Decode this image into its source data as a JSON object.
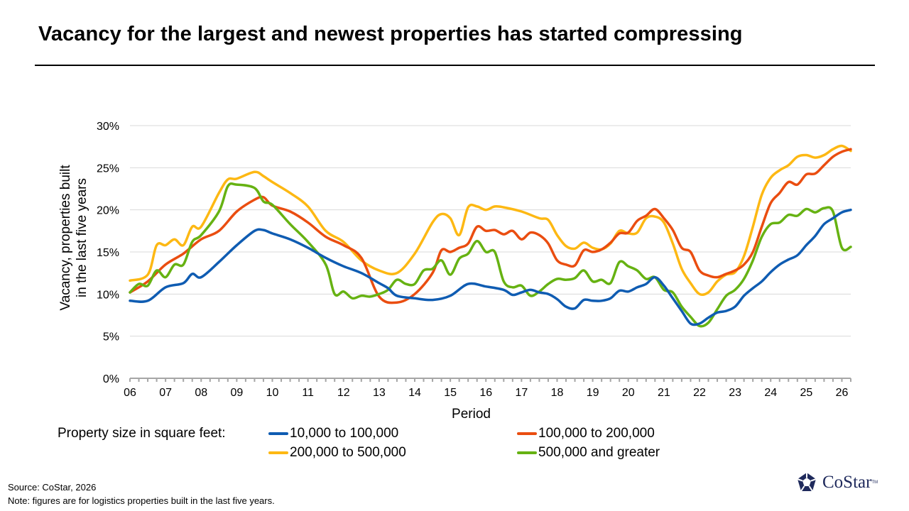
{
  "title": "Vacancy for the largest and newest properties has started compressing",
  "legend": {
    "caption": "Property size in square feet:",
    "items": [
      {
        "label": "10,000 to 100,000",
        "color": "#0f5cb2"
      },
      {
        "label": "100,000 to 200,000",
        "color": "#ea4d10"
      },
      {
        "label": "200,000 to 500,000",
        "color": "#fdb813"
      },
      {
        "label": "500,000 and greater",
        "color": "#66b212"
      }
    ]
  },
  "source": "Source: CoStar, 2026",
  "note": "Note: figures are for logistics properties built in the last five years.",
  "logo": {
    "name": "costar-logo",
    "text": "CoStar",
    "tm": "TM"
  },
  "chart_data": {
    "type": "line",
    "xlabel": "Period",
    "ylabel": [
      "Vacancy, properties built",
      "in the last five years"
    ],
    "ylim": [
      0,
      30
    ],
    "yticks": [
      "0%",
      "5%",
      "10%",
      "15%",
      "20%",
      "25%",
      "30%"
    ],
    "xlim": [
      2006,
      2026.25
    ],
    "xticks": [
      "06",
      "07",
      "08",
      "09",
      "10",
      "11",
      "12",
      "13",
      "14",
      "15",
      "16",
      "17",
      "18",
      "19",
      "20",
      "21",
      "22",
      "23",
      "24",
      "25",
      "26"
    ],
    "grid": "horizontal",
    "series": [
      {
        "name": "10,000 to 100,000",
        "color": "#0f5cb2",
        "x": [
          2006.0,
          2006.5,
          2007.0,
          2007.5,
          2007.75,
          2008.0,
          2008.5,
          2009.0,
          2009.5,
          2009.75,
          2010.0,
          2010.5,
          2011.0,
          2011.5,
          2012.0,
          2012.5,
          2013.0,
          2013.25,
          2013.5,
          2014.0,
          2014.5,
          2015.0,
          2015.5,
          2016.0,
          2016.5,
          2016.75,
          2017.0,
          2017.25,
          2017.5,
          2017.75,
          2018.0,
          2018.25,
          2018.5,
          2018.75,
          2019.0,
          2019.25,
          2019.5,
          2019.75,
          2020.0,
          2020.25,
          2020.5,
          2020.75,
          2021.0,
          2021.25,
          2021.5,
          2021.75,
          2022.0,
          2022.25,
          2022.5,
          2022.75,
          2023.0,
          2023.25,
          2023.5,
          2023.75,
          2024.0,
          2024.25,
          2024.5,
          2024.75,
          2025.0,
          2025.25,
          2025.5,
          2025.75,
          2026.0,
          2026.25
        ],
        "y": [
          9.2,
          9.2,
          10.8,
          11.3,
          12.4,
          12.0,
          13.8,
          15.8,
          17.5,
          17.6,
          17.2,
          16.5,
          15.5,
          14.3,
          13.3,
          12.5,
          11.3,
          10.7,
          9.8,
          9.5,
          9.3,
          9.8,
          11.2,
          10.9,
          10.5,
          9.9,
          10.2,
          10.5,
          10.2,
          10.0,
          9.4,
          8.5,
          8.3,
          9.3,
          9.2,
          9.2,
          9.5,
          10.4,
          10.3,
          10.8,
          11.2,
          12.0,
          11.0,
          9.5,
          8.0,
          6.5,
          6.5,
          7.2,
          7.8,
          8.0,
          8.5,
          9.8,
          10.7,
          11.5,
          12.6,
          13.5,
          14.1,
          14.6,
          15.8,
          16.9,
          18.3,
          19.0,
          19.7,
          20.0
        ]
      },
      {
        "name": "100,000 to 200,000",
        "color": "#ea4d10",
        "x": [
          2006.0,
          2006.5,
          2007.0,
          2007.5,
          2008.0,
          2008.5,
          2009.0,
          2009.5,
          2009.75,
          2010.0,
          2010.5,
          2011.0,
          2011.5,
          2012.0,
          2012.5,
          2013.0,
          2013.5,
          2014.0,
          2014.5,
          2014.75,
          2015.0,
          2015.25,
          2015.5,
          2015.75,
          2016.0,
          2016.25,
          2016.5,
          2016.75,
          2017.0,
          2017.25,
          2017.5,
          2017.75,
          2018.0,
          2018.25,
          2018.5,
          2018.75,
          2019.0,
          2019.25,
          2019.5,
          2019.75,
          2020.0,
          2020.25,
          2020.5,
          2020.75,
          2021.0,
          2021.25,
          2021.5,
          2021.75,
          2022.0,
          2022.25,
          2022.5,
          2022.75,
          2023.0,
          2023.25,
          2023.5,
          2023.75,
          2024.0,
          2024.25,
          2024.5,
          2024.75,
          2025.0,
          2025.25,
          2025.5,
          2025.75,
          2026.0,
          2026.25
        ],
        "y": [
          10.2,
          11.5,
          13.5,
          14.8,
          16.5,
          17.5,
          19.8,
          21.2,
          21.5,
          20.5,
          19.8,
          18.5,
          16.8,
          15.8,
          14.3,
          9.7,
          9.0,
          10.0,
          12.5,
          15.2,
          15.0,
          15.5,
          16.0,
          18.0,
          17.5,
          17.6,
          17.1,
          17.5,
          16.5,
          17.3,
          17.0,
          16.0,
          14.0,
          13.5,
          13.4,
          15.2,
          15.0,
          15.3,
          16.1,
          17.2,
          17.3,
          18.7,
          19.3,
          20.1,
          19.0,
          17.6,
          15.5,
          15.0,
          12.8,
          12.2,
          12.0,
          12.4,
          12.8,
          13.5,
          15.0,
          18.0,
          20.8,
          22.0,
          23.3,
          23.0,
          24.2,
          24.3,
          25.3,
          26.3,
          26.9,
          27.2
        ]
      },
      {
        "name": "200,000 to 500,000",
        "color": "#fdb813",
        "x": [
          2006.0,
          2006.5,
          2006.75,
          2007.0,
          2007.25,
          2007.5,
          2007.75,
          2008.0,
          2008.5,
          2008.75,
          2009.0,
          2009.5,
          2009.75,
          2010.0,
          2010.5,
          2011.0,
          2011.5,
          2012.0,
          2012.5,
          2013.0,
          2013.5,
          2014.0,
          2014.5,
          2014.75,
          2015.0,
          2015.25,
          2015.5,
          2015.75,
          2016.0,
          2016.25,
          2016.5,
          2017.0,
          2017.5,
          2017.75,
          2018.0,
          2018.25,
          2018.5,
          2018.75,
          2019.0,
          2019.25,
          2019.5,
          2019.75,
          2020.0,
          2020.25,
          2020.5,
          2020.75,
          2021.0,
          2021.25,
          2021.5,
          2021.75,
          2022.0,
          2022.25,
          2022.5,
          2022.75,
          2023.0,
          2023.25,
          2023.5,
          2023.75,
          2024.0,
          2024.25,
          2024.5,
          2024.75,
          2025.0,
          2025.25,
          2025.5,
          2025.75,
          2026.0,
          2026.25
        ],
        "y": [
          11.6,
          12.3,
          15.8,
          15.8,
          16.5,
          15.8,
          18.0,
          18.0,
          22.0,
          23.6,
          23.7,
          24.5,
          24.0,
          23.3,
          22.0,
          20.4,
          17.5,
          16.2,
          14.0,
          12.8,
          12.5,
          14.8,
          18.5,
          19.5,
          19.0,
          17.0,
          20.3,
          20.4,
          20.0,
          20.4,
          20.3,
          19.8,
          19.0,
          18.8,
          17.0,
          15.7,
          15.4,
          16.1,
          15.5,
          15.3,
          16.0,
          17.5,
          17.2,
          17.3,
          19.0,
          19.2,
          18.5,
          16.0,
          13.0,
          11.3,
          10.0,
          10.2,
          11.5,
          12.3,
          12.6,
          14.5,
          18.0,
          21.8,
          23.8,
          24.7,
          25.3,
          26.3,
          26.5,
          26.2,
          26.5,
          27.2,
          27.6,
          27.0
        ]
      },
      {
        "name": "500,000 and greater",
        "color": "#66b212",
        "x": [
          2006.0,
          2006.25,
          2006.5,
          2006.75,
          2007.0,
          2007.25,
          2007.5,
          2007.75,
          2008.0,
          2008.5,
          2008.75,
          2009.0,
          2009.5,
          2009.75,
          2010.0,
          2010.5,
          2011.0,
          2011.5,
          2011.75,
          2012.0,
          2012.25,
          2012.5,
          2012.75,
          2013.0,
          2013.25,
          2013.5,
          2013.75,
          2014.0,
          2014.25,
          2014.5,
          2014.75,
          2015.0,
          2015.25,
          2015.5,
          2015.75,
          2016.0,
          2016.25,
          2016.5,
          2016.75,
          2017.0,
          2017.25,
          2017.5,
          2017.75,
          2018.0,
          2018.25,
          2018.5,
          2018.75,
          2019.0,
          2019.25,
          2019.5,
          2019.75,
          2020.0,
          2020.25,
          2020.5,
          2020.75,
          2021.0,
          2021.25,
          2021.5,
          2021.75,
          2022.0,
          2022.25,
          2022.5,
          2022.75,
          2023.0,
          2023.25,
          2023.5,
          2023.75,
          2024.0,
          2024.25,
          2024.5,
          2024.75,
          2025.0,
          2025.25,
          2025.5,
          2025.75,
          2026.0,
          2026.25
        ],
        "y": [
          10.2,
          11.2,
          11.0,
          12.8,
          12.0,
          13.5,
          13.5,
          16.2,
          17.0,
          19.8,
          22.8,
          23.0,
          22.6,
          21.0,
          20.6,
          18.3,
          16.2,
          13.5,
          10.0,
          10.3,
          9.5,
          9.8,
          9.7,
          10.0,
          10.5,
          11.7,
          11.2,
          11.2,
          12.8,
          13.0,
          14.0,
          12.3,
          14.2,
          14.8,
          16.3,
          15.0,
          15.0,
          11.5,
          10.8,
          11.0,
          9.8,
          10.3,
          11.2,
          11.8,
          11.7,
          11.9,
          12.8,
          11.5,
          11.7,
          11.3,
          13.8,
          13.3,
          12.8,
          11.8,
          12.0,
          10.5,
          10.2,
          8.5,
          7.3,
          6.2,
          6.6,
          8.2,
          9.8,
          10.5,
          11.8,
          14.0,
          16.8,
          18.3,
          18.5,
          19.4,
          19.3,
          20.1,
          19.7,
          20.2,
          19.8,
          15.5,
          15.6
        ]
      }
    ]
  }
}
